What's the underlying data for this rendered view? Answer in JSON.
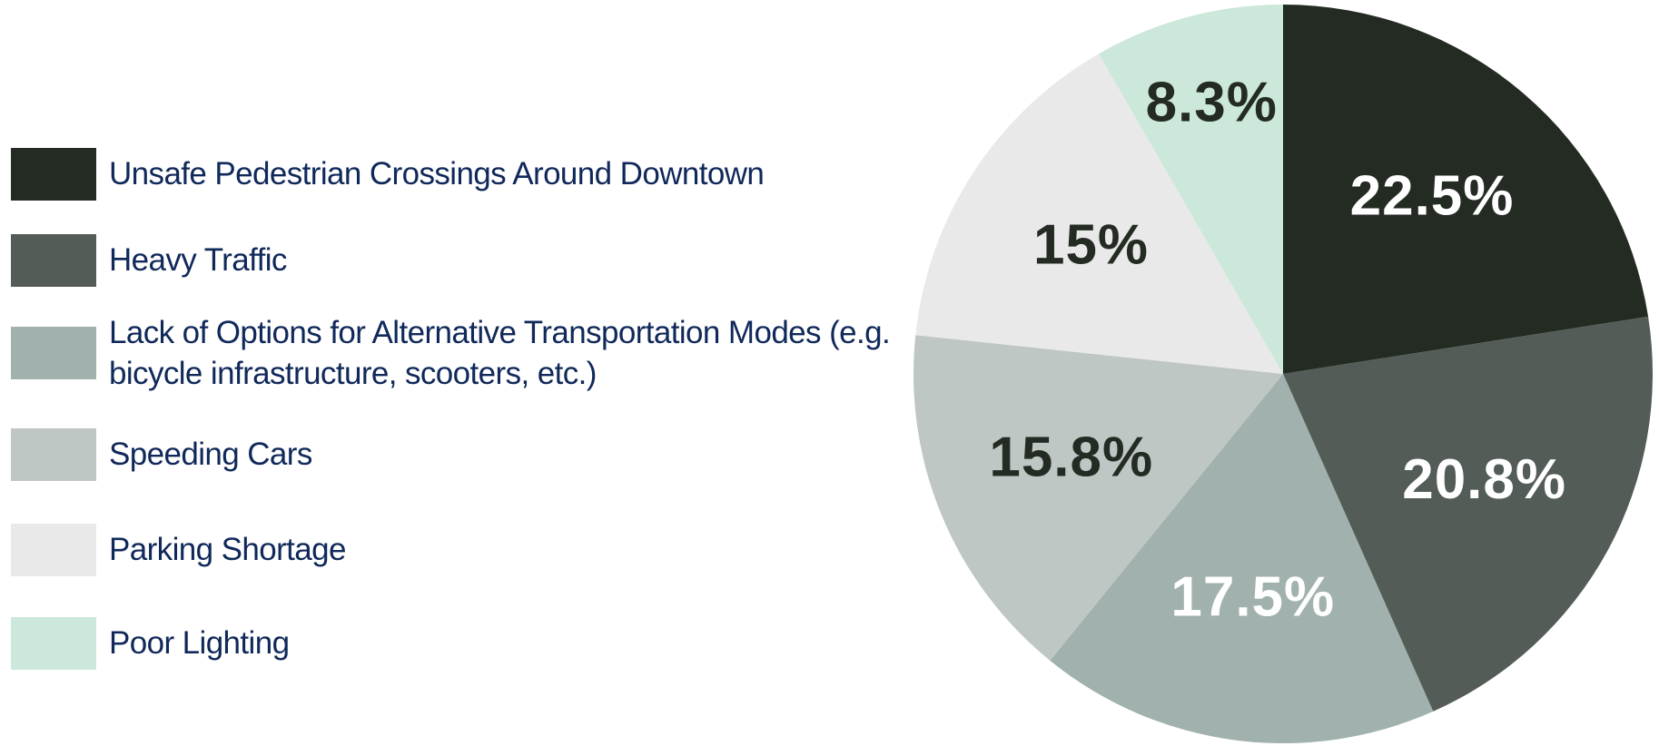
{
  "chart_data": {
    "type": "pie",
    "categories": [
      "Unsafe Pedestrian Crossings Around Downtown",
      "Heavy Traffic",
      "Lack of Options for Alternative Transportation Modes (e.g. bicycle infrastructure, scooters, etc.)",
      "Speeding Cars",
      "Parking Shortage",
      "Poor Lighting"
    ],
    "values": [
      22.5,
      20.8,
      17.5,
      15.8,
      15,
      8.3
    ],
    "value_labels": [
      "22.5%",
      "20.8%",
      "17.5%",
      "15.8%",
      "15%",
      "8.3%"
    ],
    "colors": [
      "#232b22",
      "#535c56",
      "#a0b1ae",
      "#bfc7c5",
      "#e9e9e9",
      "#cce8da"
    ],
    "label_colors": [
      "#ffffff",
      "#ffffff",
      "#ffffff",
      "#232b22",
      "#232b22",
      "#232b22"
    ],
    "legend": "left"
  }
}
